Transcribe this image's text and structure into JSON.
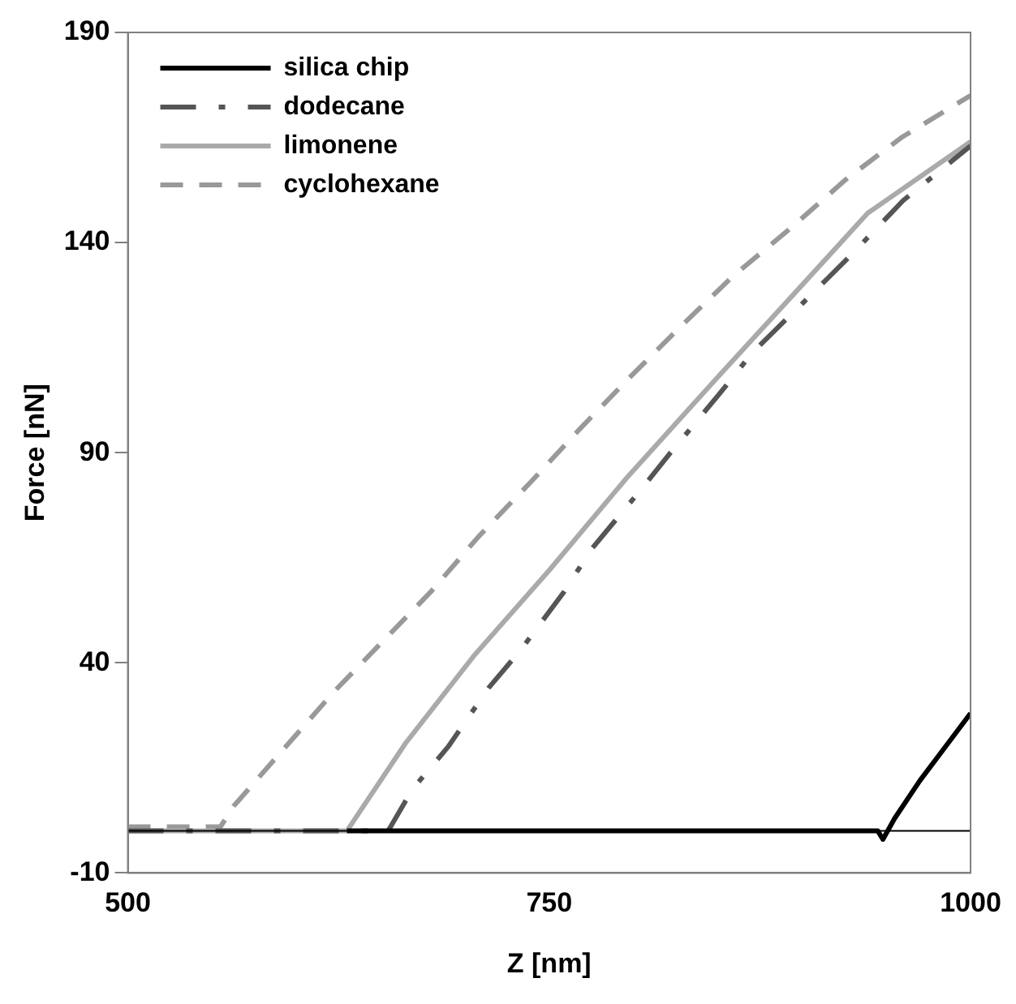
{
  "chart_data": {
    "type": "line",
    "xlabel": "Z [nm]",
    "ylabel": "Force [nN]",
    "xlim": [
      500,
      1000
    ],
    "xticks": [
      500,
      750,
      1000
    ],
    "ylim": [
      -10,
      190
    ],
    "yticks": [
      -10,
      40,
      90,
      140,
      190
    ],
    "grid": false,
    "legend": "top left",
    "marker": "none",
    "ref_lines": [
      {
        "axis": "y",
        "value": 0,
        "color": "#000000"
      }
    ],
    "series": [
      {
        "name": "silica chip",
        "color": "#000000",
        "line_style": "solid",
        "x": [
          630,
          945,
          948,
          955,
          970,
          985,
          1000
        ],
        "values": [
          0,
          0,
          -2,
          3,
          12,
          20,
          28
        ]
      },
      {
        "name": "dodecane",
        "color": "#555555",
        "line_style": "dashdot",
        "x": [
          500,
          645,
          653,
          669,
          690,
          714,
          733,
          759,
          775,
          804,
          822,
          851,
          871,
          904,
          929,
          960,
          1000
        ],
        "values": [
          0,
          0,
          -1,
          10,
          20,
          34,
          43,
          57,
          67,
          81,
          90,
          104,
          114,
          127,
          137,
          150,
          163
        ]
      },
      {
        "name": "limonene",
        "color": "#aaaaaa",
        "line_style": "solid",
        "x": [
          500,
          630,
          665,
          706,
          750,
          796,
          850,
          898,
          939,
          1000
        ],
        "values": [
          0,
          0,
          21,
          42,
          62,
          84,
          108,
          129,
          147,
          164
        ]
      },
      {
        "name": "cyclohexane",
        "color": "#999999",
        "line_style": "dashed",
        "x": [
          500,
          555,
          563,
          622,
          651,
          680,
          708,
          739,
          769,
          798,
          828,
          859,
          892,
          926,
          959,
          1000
        ],
        "values": [
          1,
          1,
          6,
          33,
          45,
          57,
          70,
          83,
          96,
          108,
          120,
          132,
          143,
          155,
          165,
          175
        ]
      }
    ]
  }
}
